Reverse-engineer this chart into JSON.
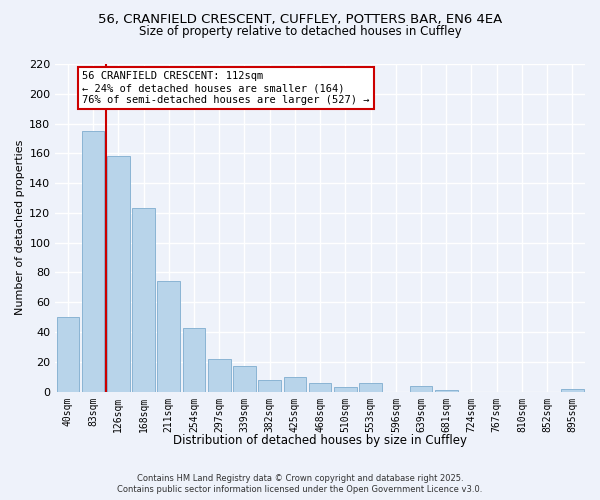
{
  "title_line1": "56, CRANFIELD CRESCENT, CUFFLEY, POTTERS BAR, EN6 4EA",
  "title_line2": "Size of property relative to detached houses in Cuffley",
  "bar_labels": [
    "40sqm",
    "83sqm",
    "126sqm",
    "168sqm",
    "211sqm",
    "254sqm",
    "297sqm",
    "339sqm",
    "382sqm",
    "425sqm",
    "468sqm",
    "510sqm",
    "553sqm",
    "596sqm",
    "639sqm",
    "681sqm",
    "724sqm",
    "767sqm",
    "810sqm",
    "852sqm",
    "895sqm"
  ],
  "bar_values": [
    50,
    175,
    158,
    123,
    74,
    43,
    22,
    17,
    8,
    10,
    6,
    3,
    6,
    0,
    4,
    1,
    0,
    0,
    0,
    0,
    2
  ],
  "bar_color": "#b8d4ea",
  "bar_edge_color": "#8ab4d4",
  "xlabel": "Distribution of detached houses by size in Cuffley",
  "ylabel": "Number of detached properties",
  "ylim": [
    0,
    220
  ],
  "yticks": [
    0,
    20,
    40,
    60,
    80,
    100,
    120,
    140,
    160,
    180,
    200,
    220
  ],
  "property_line_x": 1.5,
  "property_line_color": "#cc0000",
  "annotation_box_text": "56 CRANFIELD CRESCENT: 112sqm\n← 24% of detached houses are smaller (164)\n76% of semi-detached houses are larger (527) →",
  "annotation_box_color": "#cc0000",
  "annotation_box_fill": "#ffffff",
  "footer_line1": "Contains HM Land Registry data © Crown copyright and database right 2025.",
  "footer_line2": "Contains public sector information licensed under the Open Government Licence v3.0.",
  "bg_color": "#eef2fa",
  "grid_color": "#ffffff"
}
